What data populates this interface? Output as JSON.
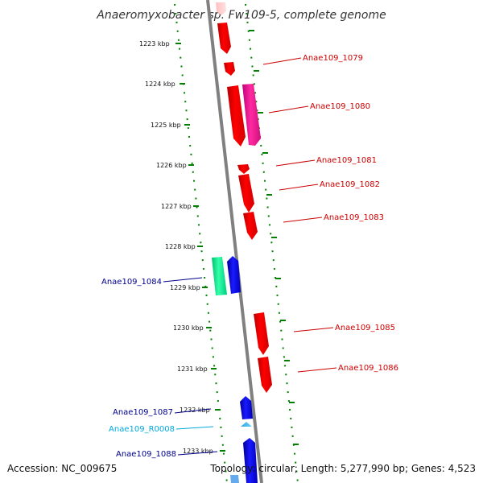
{
  "title": "Anaeromyxobacter sp. Fw109-5, complete genome",
  "footer": {
    "accession": "Accession: NC_009675",
    "topology": "Topology: circular; Length: 5,277,990 bp; Genes: 4,523"
  },
  "scale_marks": [
    {
      "label": "1223 kbp",
      "kbp": 1223
    },
    {
      "label": "1224 kbp",
      "kbp": 1224
    },
    {
      "label": "1225 kbp",
      "kbp": 1225
    },
    {
      "label": "1226 kbp",
      "kbp": 1226
    },
    {
      "label": "1227 kbp",
      "kbp": 1227
    },
    {
      "label": "1228 kbp",
      "kbp": 1228
    },
    {
      "label": "1229 kbp",
      "kbp": 1229
    },
    {
      "label": "1230 kbp",
      "kbp": 1230
    },
    {
      "label": "1231 kbp",
      "kbp": 1231
    },
    {
      "label": "1232 kbp",
      "kbp": 1232
    },
    {
      "label": "1233 kbp",
      "kbp": 1233
    }
  ],
  "gene_labels": {
    "forward": [
      {
        "name": "Anae109_1079"
      },
      {
        "name": "Anae109_1080"
      },
      {
        "name": "Anae109_1081"
      },
      {
        "name": "Anae109_1082"
      },
      {
        "name": "Anae109_1083"
      },
      {
        "name": "Anae109_1085"
      },
      {
        "name": "Anae109_1086"
      }
    ],
    "reverse": [
      {
        "name": "Anae109_1084"
      },
      {
        "name": "Anae109_1087"
      },
      {
        "name": "Anae109_R0008"
      },
      {
        "name": "Anae109_1088"
      }
    ]
  },
  "colors": {
    "forward_gene": "#ff0000",
    "forward_label": "#cc0000",
    "highlight_gene": "#ff1493",
    "reverse_gene": "#0000ee",
    "reverse_label": "#00008b",
    "teal_gene": "#00ee99",
    "rna_gene": "#00bfff",
    "rna_label": "#00aadd",
    "backbone": "#808080",
    "scale_dots": "#008000"
  }
}
